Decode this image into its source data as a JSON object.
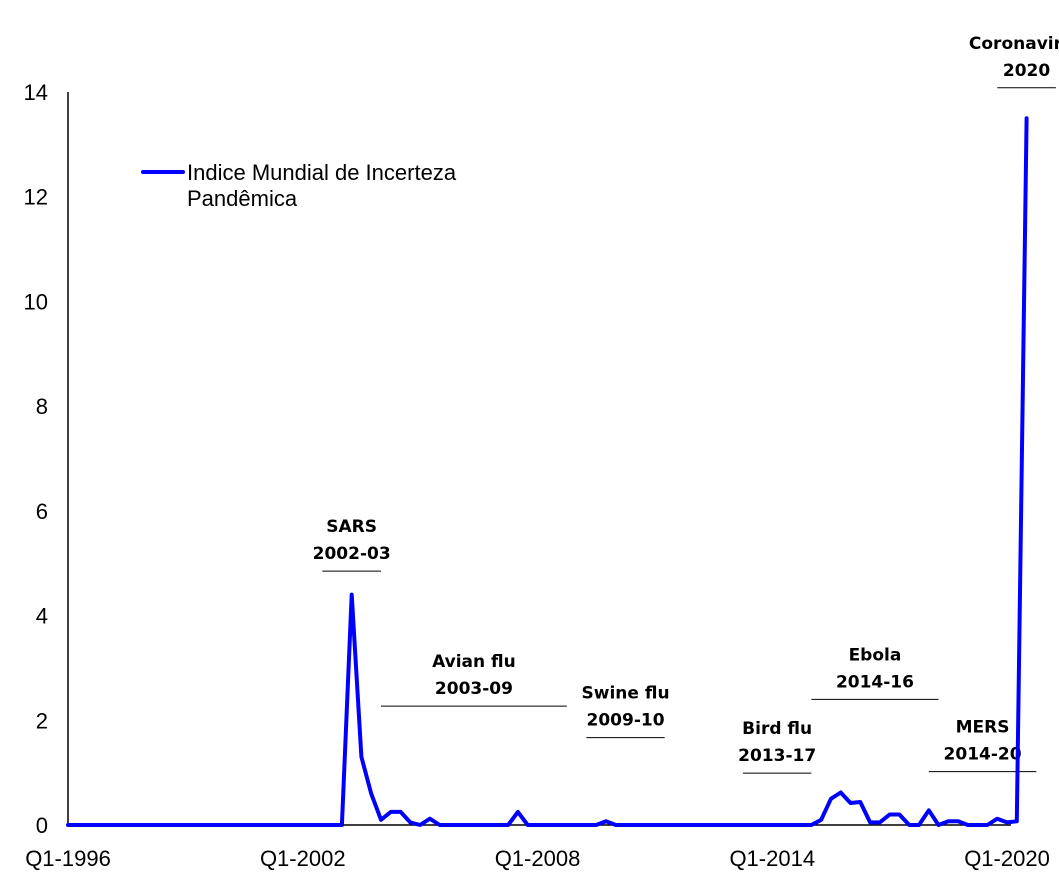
{
  "chart_data": {
    "type": "line",
    "title": "",
    "xlabel": "",
    "ylabel": "",
    "ylim": [
      0,
      14
    ],
    "y_ticks": [
      0,
      2,
      4,
      6,
      8,
      10,
      12,
      14
    ],
    "x_ticks": [
      "Q1-1996",
      "Q1-2002",
      "Q1-2008",
      "Q1-2014",
      "Q1-2020"
    ],
    "x_range": [
      1996.0,
      2020.0
    ],
    "grid": false,
    "legend_position": "top-left",
    "series": [
      {
        "name": "Indice Mundial de Incerteza Pandêmica",
        "color": "#0000ff",
        "points": [
          [
            1996.0,
            0
          ],
          [
            2003.0,
            0
          ],
          [
            2003.25,
            4.4
          ],
          [
            2003.5,
            1.3
          ],
          [
            2003.75,
            0.6
          ],
          [
            2004.0,
            0.1
          ],
          [
            2004.25,
            0.25
          ],
          [
            2004.5,
            0.25
          ],
          [
            2004.75,
            0.05
          ],
          [
            2005.0,
            0
          ],
          [
            2005.25,
            0.12
          ],
          [
            2005.5,
            0
          ],
          [
            2007.25,
            0
          ],
          [
            2007.5,
            0.25
          ],
          [
            2007.75,
            0
          ],
          [
            2009.5,
            0
          ],
          [
            2009.75,
            0.07
          ],
          [
            2010.0,
            0
          ],
          [
            2015.0,
            0
          ],
          [
            2015.25,
            0.1
          ],
          [
            2015.5,
            0.5
          ],
          [
            2015.75,
            0.62
          ],
          [
            2016.0,
            0.42
          ],
          [
            2016.25,
            0.44
          ],
          [
            2016.5,
            0.05
          ],
          [
            2016.75,
            0.05
          ],
          [
            2017.0,
            0.2
          ],
          [
            2017.25,
            0.2
          ],
          [
            2017.5,
            0
          ],
          [
            2017.75,
            0
          ],
          [
            2018.0,
            0.28
          ],
          [
            2018.25,
            0
          ],
          [
            2018.5,
            0.07
          ],
          [
            2018.75,
            0.07
          ],
          [
            2019.0,
            0
          ],
          [
            2019.5,
            0
          ],
          [
            2019.75,
            0.12
          ],
          [
            2020.0,
            0.05
          ],
          [
            2020.25,
            0.07
          ],
          [
            2020.5,
            13.5
          ]
        ]
      }
    ],
    "annotations": [
      {
        "lines": [
          "SARS",
          "2002-03"
        ],
        "x0": 2002.5,
        "x1": 2004.0,
        "y": 4.85
      },
      {
        "lines": [
          "Avian flu",
          "2003-09"
        ],
        "x0": 2004.0,
        "x1": 2008.75,
        "y": 2.27
      },
      {
        "lines": [
          "Swine flu",
          "2009-10"
        ],
        "x0": 2009.25,
        "x1": 2011.25,
        "y": 1.67
      },
      {
        "lines": [
          "Bird flu",
          "2013-17"
        ],
        "x0": 2013.25,
        "x1": 2015.0,
        "y": 0.99
      },
      {
        "lines": [
          "Ebola",
          "2014-16"
        ],
        "x0": 2015.0,
        "x1": 2018.25,
        "y": 2.4
      },
      {
        "lines": [
          "MERS",
          "2014-20"
        ],
        "x0": 2018.0,
        "x1": 2020.75,
        "y": 1.02
      },
      {
        "lines": [
          "Coronavirus",
          "2020"
        ],
        "x0": 2019.75,
        "x1": 2021.25,
        "y": 14.08
      }
    ]
  }
}
